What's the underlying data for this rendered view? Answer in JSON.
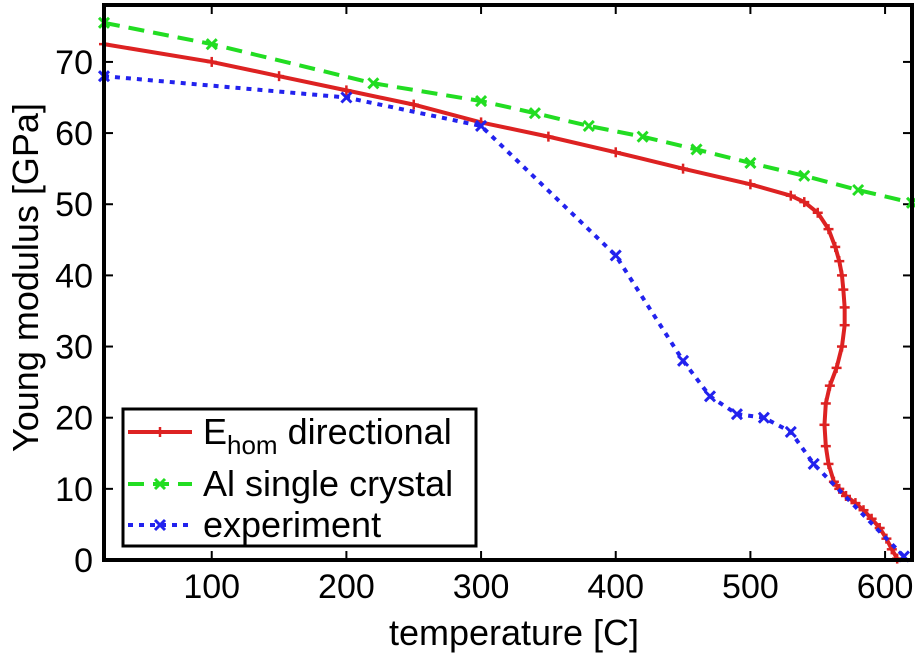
{
  "chart_data": {
    "type": "line",
    "xlabel": "temperature [C]",
    "ylabel": "Young modulus [GPa]",
    "xlim": [
      20,
      620
    ],
    "ylim": [
      0,
      78
    ],
    "xticks": [
      100,
      200,
      300,
      400,
      500,
      600
    ],
    "yticks": [
      0,
      10,
      20,
      30,
      40,
      50,
      60,
      70
    ],
    "grid": false,
    "legend_position": "bottom-left",
    "series": [
      {
        "name": "E",
        "name_subscript": "hom",
        "name_suffix": " directional",
        "color": "#dd2222",
        "style": "solid",
        "marker": "plus",
        "points": [
          [
            20,
            72.5
          ],
          [
            100,
            70.0
          ],
          [
            150,
            68.0
          ],
          [
            200,
            66.0
          ],
          [
            250,
            64.0
          ],
          [
            300,
            61.5
          ],
          [
            350,
            59.5
          ],
          [
            400,
            57.3
          ],
          [
            450,
            55.0
          ],
          [
            500,
            52.8
          ],
          [
            530,
            51.2
          ],
          [
            540,
            50.3
          ],
          [
            550,
            48.8
          ],
          [
            558,
            46.5
          ],
          [
            563,
            44.0
          ],
          [
            566,
            42.0
          ],
          [
            568,
            40.0
          ],
          [
            569,
            38.0
          ],
          [
            570,
            35.5
          ],
          [
            570,
            33.0
          ],
          [
            568,
            30.0
          ],
          [
            564,
            27.0
          ],
          [
            559,
            24.5
          ],
          [
            556,
            22.0
          ],
          [
            555,
            19.0
          ],
          [
            556,
            16.0
          ],
          [
            558,
            13.5
          ],
          [
            562,
            11.0
          ],
          [
            566,
            10.0
          ],
          [
            571,
            9.0
          ],
          [
            578,
            8.0
          ],
          [
            584,
            7.0
          ],
          [
            590,
            5.8
          ],
          [
            596,
            4.5
          ],
          [
            601,
            3.0
          ],
          [
            605,
            1.5
          ],
          [
            609,
            0.2
          ]
        ]
      },
      {
        "name": "Al single crystal",
        "color": "#22dd22",
        "style": "dashed",
        "marker": "x",
        "points": [
          [
            20,
            75.5
          ],
          [
            100,
            72.5
          ],
          [
            220,
            67.0
          ],
          [
            300,
            64.5
          ],
          [
            340,
            62.8
          ],
          [
            380,
            61.0
          ],
          [
            420,
            59.5
          ],
          [
            460,
            57.7
          ],
          [
            500,
            55.8
          ],
          [
            540,
            54.0
          ],
          [
            580,
            52.0
          ],
          [
            620,
            50.2
          ]
        ]
      },
      {
        "name": "experiment",
        "color": "#2222ee",
        "style": "dotted",
        "marker": "x",
        "points": [
          [
            20,
            68.0
          ],
          [
            200,
            65.0
          ],
          [
            300,
            61.0
          ],
          [
            400,
            42.8
          ],
          [
            450,
            28.0
          ],
          [
            470,
            23.0
          ],
          [
            490,
            20.5
          ],
          [
            510,
            20.0
          ],
          [
            530,
            18.0
          ],
          [
            547,
            13.5
          ],
          [
            614,
            0.5
          ]
        ]
      }
    ]
  }
}
